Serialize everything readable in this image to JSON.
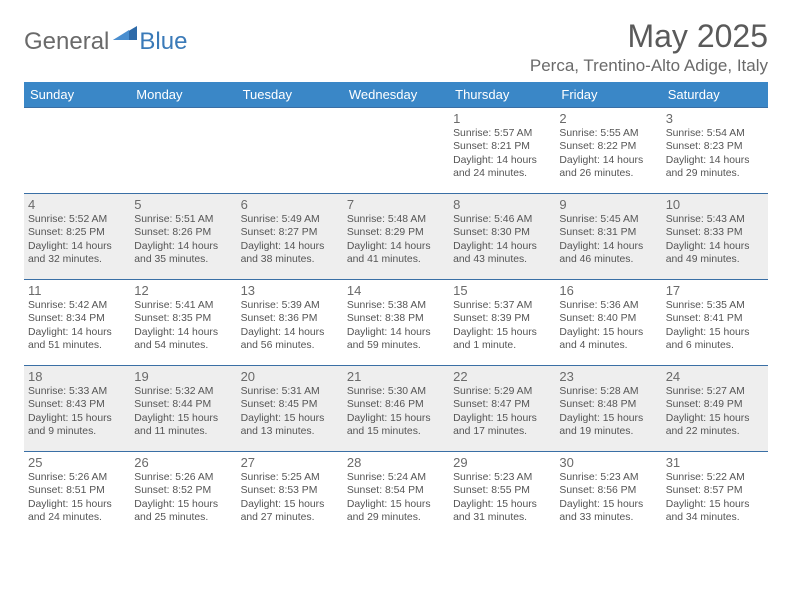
{
  "brand": {
    "part1": "General",
    "part2": "Blue"
  },
  "colors": {
    "header_bg": "#3a87c7",
    "header_text": "#ffffff",
    "row_border": "#3a6fa5",
    "alt_row_bg": "#eeeeee",
    "text": "#4a4a4a",
    "logo_gray": "#6a6a6a",
    "logo_blue": "#3a7ab8"
  },
  "title": "May 2025",
  "location": "Perca, Trentino-Alto Adige, Italy",
  "weekdays": [
    "Sunday",
    "Monday",
    "Tuesday",
    "Wednesday",
    "Thursday",
    "Friday",
    "Saturday"
  ],
  "weeks": [
    {
      "alt": false,
      "cells": [
        {
          "num": "",
          "sunrise": "",
          "sunset": "",
          "daylight": ""
        },
        {
          "num": "",
          "sunrise": "",
          "sunset": "",
          "daylight": ""
        },
        {
          "num": "",
          "sunrise": "",
          "sunset": "",
          "daylight": ""
        },
        {
          "num": "",
          "sunrise": "",
          "sunset": "",
          "daylight": ""
        },
        {
          "num": "1",
          "sunrise": "Sunrise: 5:57 AM",
          "sunset": "Sunset: 8:21 PM",
          "daylight": "Daylight: 14 hours and 24 minutes."
        },
        {
          "num": "2",
          "sunrise": "Sunrise: 5:55 AM",
          "sunset": "Sunset: 8:22 PM",
          "daylight": "Daylight: 14 hours and 26 minutes."
        },
        {
          "num": "3",
          "sunrise": "Sunrise: 5:54 AM",
          "sunset": "Sunset: 8:23 PM",
          "daylight": "Daylight: 14 hours and 29 minutes."
        }
      ]
    },
    {
      "alt": true,
      "cells": [
        {
          "num": "4",
          "sunrise": "Sunrise: 5:52 AM",
          "sunset": "Sunset: 8:25 PM",
          "daylight": "Daylight: 14 hours and 32 minutes."
        },
        {
          "num": "5",
          "sunrise": "Sunrise: 5:51 AM",
          "sunset": "Sunset: 8:26 PM",
          "daylight": "Daylight: 14 hours and 35 minutes."
        },
        {
          "num": "6",
          "sunrise": "Sunrise: 5:49 AM",
          "sunset": "Sunset: 8:27 PM",
          "daylight": "Daylight: 14 hours and 38 minutes."
        },
        {
          "num": "7",
          "sunrise": "Sunrise: 5:48 AM",
          "sunset": "Sunset: 8:29 PM",
          "daylight": "Daylight: 14 hours and 41 minutes."
        },
        {
          "num": "8",
          "sunrise": "Sunrise: 5:46 AM",
          "sunset": "Sunset: 8:30 PM",
          "daylight": "Daylight: 14 hours and 43 minutes."
        },
        {
          "num": "9",
          "sunrise": "Sunrise: 5:45 AM",
          "sunset": "Sunset: 8:31 PM",
          "daylight": "Daylight: 14 hours and 46 minutes."
        },
        {
          "num": "10",
          "sunrise": "Sunrise: 5:43 AM",
          "sunset": "Sunset: 8:33 PM",
          "daylight": "Daylight: 14 hours and 49 minutes."
        }
      ]
    },
    {
      "alt": false,
      "cells": [
        {
          "num": "11",
          "sunrise": "Sunrise: 5:42 AM",
          "sunset": "Sunset: 8:34 PM",
          "daylight": "Daylight: 14 hours and 51 minutes."
        },
        {
          "num": "12",
          "sunrise": "Sunrise: 5:41 AM",
          "sunset": "Sunset: 8:35 PM",
          "daylight": "Daylight: 14 hours and 54 minutes."
        },
        {
          "num": "13",
          "sunrise": "Sunrise: 5:39 AM",
          "sunset": "Sunset: 8:36 PM",
          "daylight": "Daylight: 14 hours and 56 minutes."
        },
        {
          "num": "14",
          "sunrise": "Sunrise: 5:38 AM",
          "sunset": "Sunset: 8:38 PM",
          "daylight": "Daylight: 14 hours and 59 minutes."
        },
        {
          "num": "15",
          "sunrise": "Sunrise: 5:37 AM",
          "sunset": "Sunset: 8:39 PM",
          "daylight": "Daylight: 15 hours and 1 minute."
        },
        {
          "num": "16",
          "sunrise": "Sunrise: 5:36 AM",
          "sunset": "Sunset: 8:40 PM",
          "daylight": "Daylight: 15 hours and 4 minutes."
        },
        {
          "num": "17",
          "sunrise": "Sunrise: 5:35 AM",
          "sunset": "Sunset: 8:41 PM",
          "daylight": "Daylight: 15 hours and 6 minutes."
        }
      ]
    },
    {
      "alt": true,
      "cells": [
        {
          "num": "18",
          "sunrise": "Sunrise: 5:33 AM",
          "sunset": "Sunset: 8:43 PM",
          "daylight": "Daylight: 15 hours and 9 minutes."
        },
        {
          "num": "19",
          "sunrise": "Sunrise: 5:32 AM",
          "sunset": "Sunset: 8:44 PM",
          "daylight": "Daylight: 15 hours and 11 minutes."
        },
        {
          "num": "20",
          "sunrise": "Sunrise: 5:31 AM",
          "sunset": "Sunset: 8:45 PM",
          "daylight": "Daylight: 15 hours and 13 minutes."
        },
        {
          "num": "21",
          "sunrise": "Sunrise: 5:30 AM",
          "sunset": "Sunset: 8:46 PM",
          "daylight": "Daylight: 15 hours and 15 minutes."
        },
        {
          "num": "22",
          "sunrise": "Sunrise: 5:29 AM",
          "sunset": "Sunset: 8:47 PM",
          "daylight": "Daylight: 15 hours and 17 minutes."
        },
        {
          "num": "23",
          "sunrise": "Sunrise: 5:28 AM",
          "sunset": "Sunset: 8:48 PM",
          "daylight": "Daylight: 15 hours and 19 minutes."
        },
        {
          "num": "24",
          "sunrise": "Sunrise: 5:27 AM",
          "sunset": "Sunset: 8:49 PM",
          "daylight": "Daylight: 15 hours and 22 minutes."
        }
      ]
    },
    {
      "alt": false,
      "cells": [
        {
          "num": "25",
          "sunrise": "Sunrise: 5:26 AM",
          "sunset": "Sunset: 8:51 PM",
          "daylight": "Daylight: 15 hours and 24 minutes."
        },
        {
          "num": "26",
          "sunrise": "Sunrise: 5:26 AM",
          "sunset": "Sunset: 8:52 PM",
          "daylight": "Daylight: 15 hours and 25 minutes."
        },
        {
          "num": "27",
          "sunrise": "Sunrise: 5:25 AM",
          "sunset": "Sunset: 8:53 PM",
          "daylight": "Daylight: 15 hours and 27 minutes."
        },
        {
          "num": "28",
          "sunrise": "Sunrise: 5:24 AM",
          "sunset": "Sunset: 8:54 PM",
          "daylight": "Daylight: 15 hours and 29 minutes."
        },
        {
          "num": "29",
          "sunrise": "Sunrise: 5:23 AM",
          "sunset": "Sunset: 8:55 PM",
          "daylight": "Daylight: 15 hours and 31 minutes."
        },
        {
          "num": "30",
          "sunrise": "Sunrise: 5:23 AM",
          "sunset": "Sunset: 8:56 PM",
          "daylight": "Daylight: 15 hours and 33 minutes."
        },
        {
          "num": "31",
          "sunrise": "Sunrise: 5:22 AM",
          "sunset": "Sunset: 8:57 PM",
          "daylight": "Daylight: 15 hours and 34 minutes."
        }
      ]
    }
  ]
}
